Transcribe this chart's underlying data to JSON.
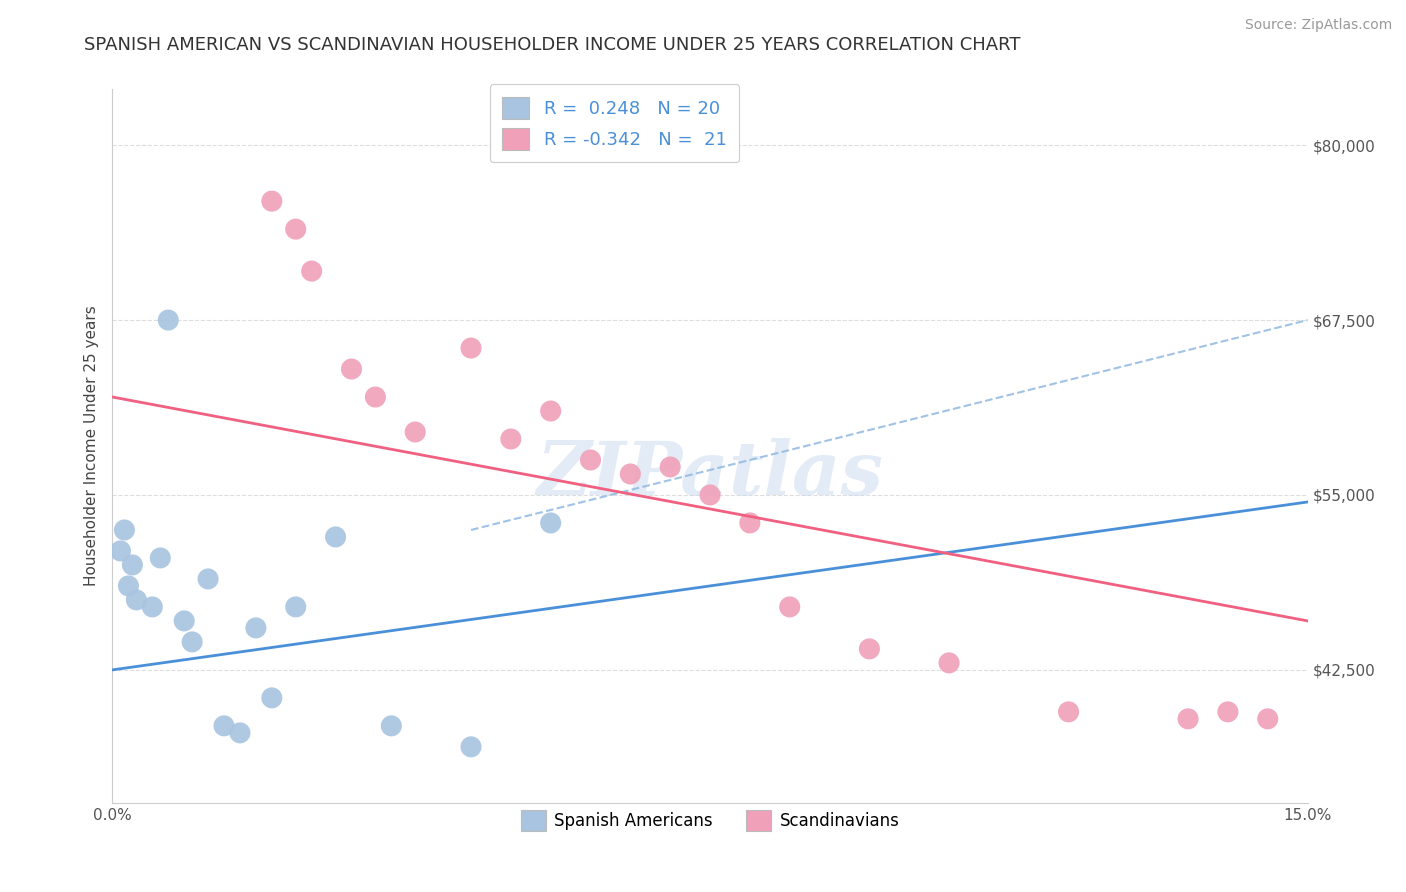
{
  "title": "SPANISH AMERICAN VS SCANDINAVIAN HOUSEHOLDER INCOME UNDER 25 YEARS CORRELATION CHART",
  "source": "Source: ZipAtlas.com",
  "ylabel": "Householder Income Under 25 years",
  "xlim": [
    0.0,
    15.0
  ],
  "ylim": [
    33000,
    84000
  ],
  "yticks": [
    42500,
    55000,
    67500,
    80000
  ],
  "ytick_labels": [
    "$42,500",
    "$55,000",
    "$67,500",
    "$80,000"
  ],
  "xticks": [
    0.0,
    15.0
  ],
  "xtick_labels": [
    "0.0%",
    "15.0%"
  ],
  "r_blue": 0.248,
  "n_blue": 20,
  "r_pink": -0.342,
  "n_pink": 21,
  "blue_color": "#a8c4e0",
  "pink_color": "#f0a0b8",
  "blue_line_color": "#4a90d9",
  "pink_line_color": "#f06080",
  "dashed_line_color": "#90b8e0",
  "legend_label_blue": "Spanish Americans",
  "legend_label_pink": "Scandinavians",
  "blue_scatter_x": [
    0.1,
    0.15,
    0.2,
    0.25,
    0.3,
    0.5,
    0.6,
    0.7,
    0.9,
    1.0,
    1.2,
    1.4,
    1.6,
    1.8,
    2.0,
    2.3,
    2.8,
    3.5,
    4.5,
    5.5
  ],
  "blue_scatter_y": [
    51000,
    52500,
    48500,
    50000,
    47500,
    47000,
    50500,
    67500,
    46000,
    44500,
    49000,
    38500,
    38000,
    45500,
    40500,
    47000,
    52000,
    38500,
    37000,
    53000
  ],
  "pink_scatter_x": [
    2.0,
    2.3,
    2.5,
    3.0,
    3.3,
    3.8,
    4.5,
    5.0,
    5.5,
    6.0,
    6.5,
    7.0,
    7.5,
    8.0,
    8.5,
    9.5,
    10.5,
    12.0,
    13.5,
    14.0,
    14.5
  ],
  "pink_scatter_y": [
    76000,
    74000,
    71000,
    64000,
    62000,
    59500,
    65500,
    59000,
    61000,
    57500,
    56500,
    57000,
    55000,
    53000,
    47000,
    44000,
    43000,
    39500,
    39000,
    39500,
    39000
  ],
  "blue_line_x0": 0.0,
  "blue_line_y0": 42500,
  "blue_line_x1": 15.0,
  "blue_line_y1": 54500,
  "pink_line_x0": 0.0,
  "pink_line_y0": 62000,
  "pink_line_x1": 15.0,
  "pink_line_y1": 46000,
  "dash_line_x0": 4.5,
  "dash_line_y0": 52500,
  "dash_line_x1": 15.0,
  "dash_line_y1": 67500,
  "watermark_text": "ZIPatlas",
  "title_fontsize": 13,
  "axis_label_fontsize": 11,
  "tick_fontsize": 11,
  "legend_fontsize": 12,
  "source_fontsize": 10
}
